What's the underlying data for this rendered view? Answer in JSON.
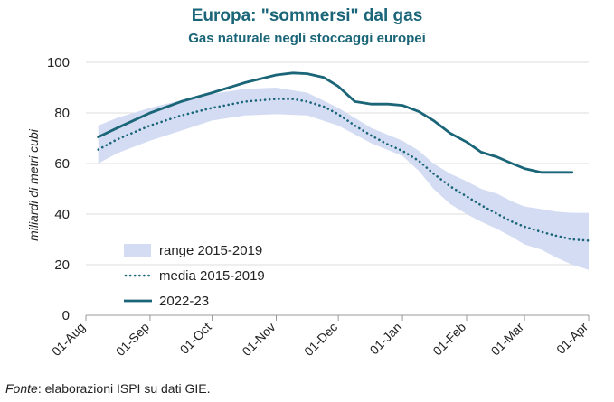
{
  "header": {
    "title": "Europa: \"sommersi\" dal gas",
    "subtitle": "Gas naturale negli stoccaggi europei"
  },
  "footer": {
    "source_label": "Fonte",
    "source_text": ": elaborazioni ISPI su dati GIE."
  },
  "colors": {
    "title": "#1a6578",
    "range_fill": "#d3dcf2",
    "media_line": "#1a6578",
    "current_line": "#1a6578",
    "grid": "#dddddd"
  },
  "chart_data": {
    "type": "line",
    "title": "Europa: \"sommersi\" dal gas",
    "subtitle": "Gas naturale negli stoccaggi europei",
    "xlabel": "",
    "ylabel": "miliardi di metri cubi",
    "ylim": [
      0,
      100
    ],
    "yticks": [
      0,
      20,
      40,
      60,
      80,
      100
    ],
    "xlim_day": [
      0,
      243
    ],
    "xticks": [
      {
        "label": "01-Aug",
        "day": 0
      },
      {
        "label": "01-Sep",
        "day": 31
      },
      {
        "label": "01-Oct",
        "day": 61
      },
      {
        "label": "01-Nov",
        "day": 92
      },
      {
        "label": "01-Dec",
        "day": 122
      },
      {
        "label": "01-Jan",
        "day": 153
      },
      {
        "label": "01-Feb",
        "day": 184
      },
      {
        "label": "01-Mar",
        "day": 212
      },
      {
        "label": "01-Apr",
        "day": 243
      }
    ],
    "grid": {
      "horizontal": true,
      "vertical": false
    },
    "legend_position": "bottom-left",
    "legend": [
      {
        "label": "range 2015-2019",
        "kind": "area"
      },
      {
        "label": "media 2015-2019",
        "kind": "dotted"
      },
      {
        "label": "2022-23",
        "kind": "solid"
      }
    ],
    "series": [
      {
        "name": "range 2015-2019",
        "kind": "range",
        "day": [
          6,
          15,
          31,
          46,
          61,
          77,
          92,
          107,
          122,
          138,
          153,
          161,
          168,
          176,
          184,
          191,
          199,
          206,
          212,
          220,
          227,
          235,
          243
        ],
        "low": [
          60,
          64,
          69,
          73,
          77,
          79,
          79.5,
          79,
          75,
          68,
          63,
          57,
          50,
          44,
          40,
          37,
          34,
          31,
          28,
          26,
          23,
          20,
          18
        ],
        "high": [
          75,
          78,
          82,
          85,
          87.5,
          89.5,
          90,
          88,
          82,
          74,
          69,
          65,
          60,
          56,
          53,
          50,
          48,
          45,
          43,
          42,
          41,
          40.5,
          40.5
        ]
      },
      {
        "name": "media 2015-2019",
        "kind": "dotted",
        "day": [
          6,
          15,
          31,
          46,
          61,
          77,
          92,
          100,
          107,
          115,
          122,
          130,
          138,
          146,
          153,
          161,
          168,
          176,
          184,
          191,
          199,
          206,
          212,
          220,
          227,
          235,
          243
        ],
        "values": [
          65.5,
          69.5,
          75,
          79,
          82,
          84.5,
          85.5,
          85.5,
          84.5,
          82.5,
          79.5,
          75,
          71,
          67.5,
          65,
          61,
          56,
          51,
          47,
          43.5,
          40,
          37,
          35,
          33,
          31.5,
          30,
          29.5
        ]
      },
      {
        "name": "2022-23",
        "kind": "solid",
        "day": [
          6,
          15,
          31,
          46,
          61,
          77,
          92,
          100,
          107,
          115,
          122,
          130,
          138,
          146,
          153,
          161,
          168,
          176,
          184,
          191,
          199,
          206,
          212,
          220,
          227,
          235
        ],
        "values": [
          70.5,
          74,
          80,
          84.5,
          88,
          92,
          95,
          95.8,
          95.5,
          94,
          90.5,
          84.5,
          83.5,
          83.5,
          83,
          80.5,
          77,
          72,
          68.5,
          64.5,
          62.5,
          60,
          58,
          56.5,
          56.5,
          56.5
        ]
      }
    ]
  }
}
